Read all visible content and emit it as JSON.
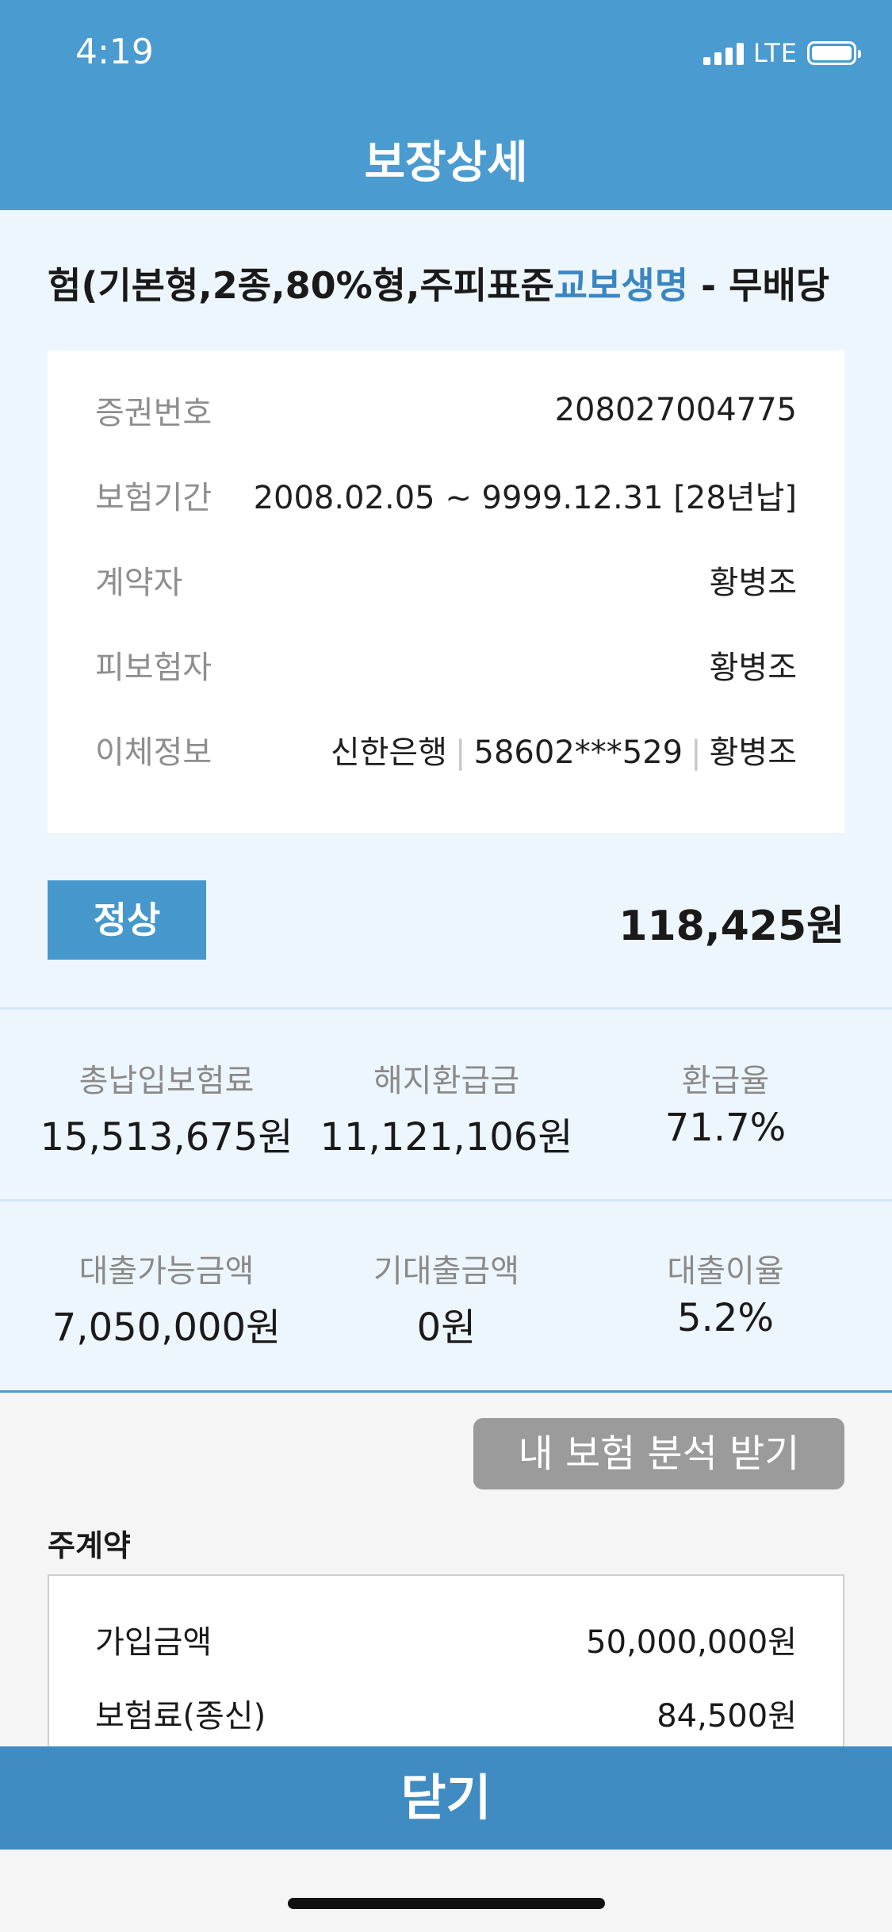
{
  "status_bar": {
    "time": "4:19",
    "network": "LTE"
  },
  "header": {
    "title": "보장상세"
  },
  "product": {
    "name_main": "험(기본형,2종,80%형,주피표준",
    "company": "교보생명",
    "name_tail": " - 무배당"
  },
  "info": [
    {
      "label": "증권번호",
      "value": "208027004775"
    },
    {
      "label": "보험기간",
      "value": "2008.02.05 ~ 9999.12.31 [28년납]"
    },
    {
      "label": "계약자",
      "value": "황병조"
    },
    {
      "label": "피보험자",
      "value": "황병조"
    },
    {
      "label": "이체정보",
      "bank": "신한은행",
      "account": "58602***529",
      "holder": "황병조",
      "separator": "|"
    }
  ],
  "status": {
    "label": "정상",
    "premium": "118,425원"
  },
  "stats1": [
    {
      "label": "총납입보험료",
      "value": "15,513,675원"
    },
    {
      "label": "해지환급금",
      "value": "11,121,106원"
    },
    {
      "label": "환급율",
      "value": "71.7%"
    }
  ],
  "stats2": [
    {
      "label": "대출가능금액",
      "value": "7,050,000원"
    },
    {
      "label": "기대출금액",
      "value": "0원"
    },
    {
      "label": "대출이율",
      "value": "5.2%"
    }
  ],
  "analysis_button": "내 보험 분석 받기",
  "main_contract": {
    "title": "주계약",
    "rows": [
      {
        "label": "가입금액",
        "value": "50,000,000원"
      },
      {
        "label": "보험료(종신)",
        "value": "84,500원"
      }
    ]
  },
  "close_button": "닫기"
}
